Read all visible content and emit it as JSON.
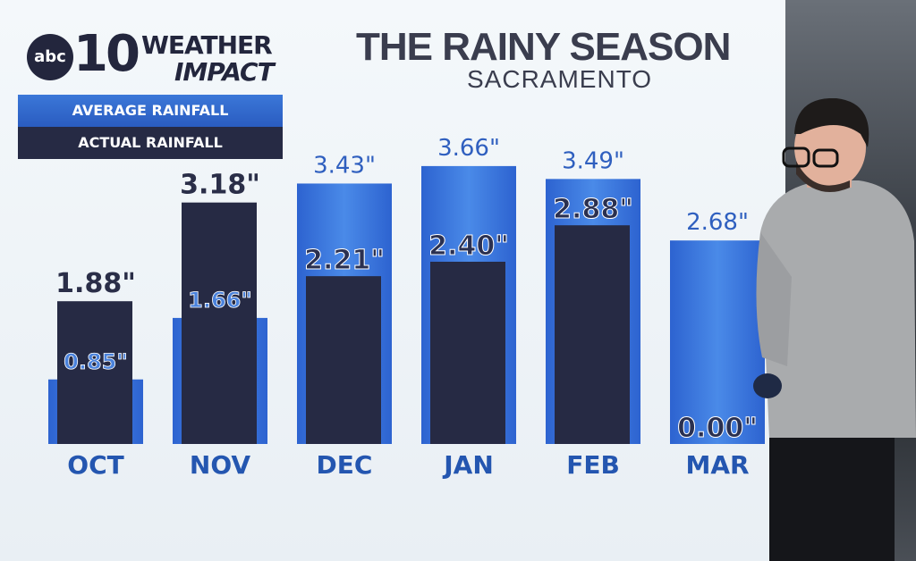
{
  "branding": {
    "station": "abc",
    "channel": "10",
    "show_line1": "WEATHER",
    "show_line2": "IMPACT"
  },
  "chart_data": {
    "type": "bar",
    "title": "THE RAINY SEASON",
    "subtitle": "SACRAMENTO",
    "categories": [
      "OCT",
      "NOV",
      "DEC",
      "JAN",
      "FEB",
      "MAR"
    ],
    "series": [
      {
        "name": "AVERAGE RAINFALL",
        "values": [
          0.85,
          1.66,
          3.43,
          3.66,
          3.49,
          2.68
        ],
        "labels": [
          "0.85\"",
          "1.66\"",
          "3.43\"",
          "3.66\"",
          "3.49\"",
          "2.68\""
        ],
        "color": "#3b7be0"
      },
      {
        "name": "ACTUAL RAINFALL",
        "values": [
          1.88,
          3.18,
          2.21,
          2.4,
          2.88,
          0.0
        ],
        "labels": [
          "1.88\"",
          "3.18\"",
          "2.21\"",
          "2.40\"",
          "2.88\"",
          "0.00\""
        ],
        "color": "#262a44"
      }
    ],
    "unit": "inches",
    "legend": "top-left",
    "grid": false
  }
}
